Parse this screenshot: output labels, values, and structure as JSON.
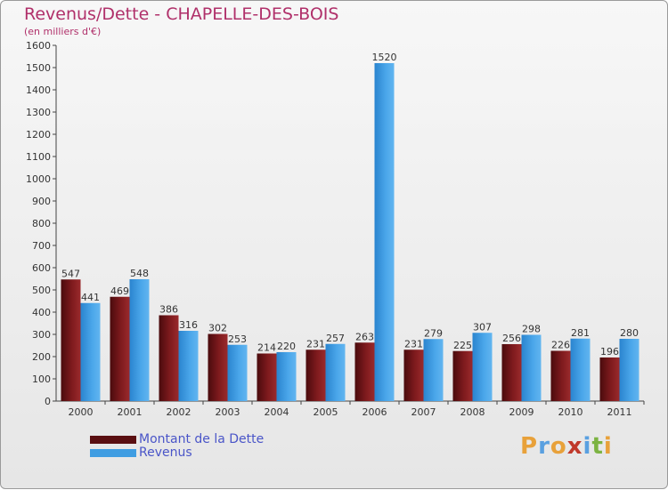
{
  "title": "Revenus/Dette - CHAPELLE-DES-BOIS",
  "subtitle": "(en milliers d'€)",
  "logo": {
    "text": "Proxiti",
    "letters": [
      {
        "ch": "P",
        "color": "#e8a13a"
      },
      {
        "ch": "r",
        "color": "#5aa0e0"
      },
      {
        "ch": "o",
        "color": "#e8a13a"
      },
      {
        "ch": "x",
        "color": "#c0392b"
      },
      {
        "ch": "i",
        "color": "#5aa0e0"
      },
      {
        "ch": "t",
        "color": "#7cb342"
      },
      {
        "ch": "i",
        "color": "#e8a13a"
      }
    ]
  },
  "colors": {
    "dette": "#6e1416",
    "revenus": "#3f9de2",
    "title": "#b0306a",
    "legend_text": "#4a55c8"
  },
  "chart_data": {
    "type": "bar",
    "title": "Revenus/Dette - CHAPELLE-DES-BOIS",
    "subtitle": "(en milliers d'€)",
    "categories": [
      "2000",
      "2001",
      "2002",
      "2003",
      "2004",
      "2005",
      "2006",
      "2007",
      "2008",
      "2009",
      "2010",
      "2011"
    ],
    "series": [
      {
        "name": "Montant de la Dette",
        "values": [
          547,
          469,
          386,
          302,
          214,
          231,
          263,
          231,
          225,
          256,
          226,
          196
        ]
      },
      {
        "name": "Revenus",
        "values": [
          441,
          548,
          316,
          253,
          220,
          257,
          1520,
          279,
          307,
          298,
          281,
          280
        ]
      }
    ],
    "ylim": [
      0,
      1600
    ],
    "yticks": [
      0,
      100,
      200,
      300,
      400,
      500,
      600,
      700,
      800,
      900,
      1000,
      1100,
      1200,
      1300,
      1400,
      1500,
      1600
    ],
    "grid": false,
    "legend": "bottom-left",
    "data_labels": true
  }
}
